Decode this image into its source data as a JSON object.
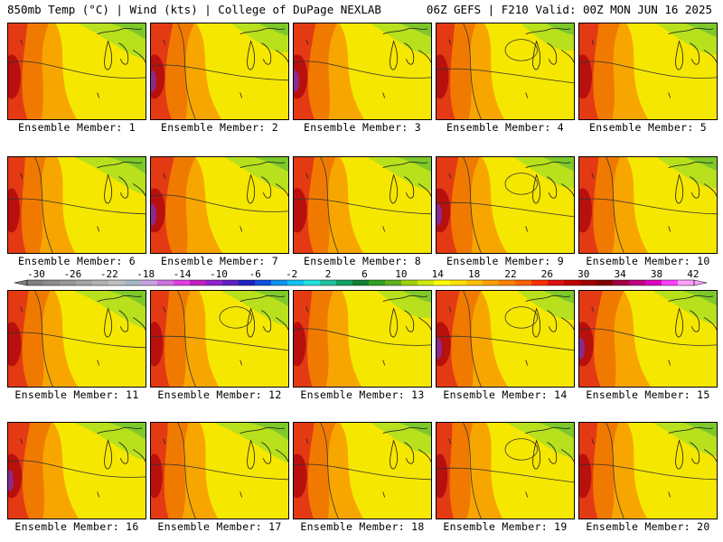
{
  "header": {
    "left_title": "850mb Temp (°C) | Wind (kts) | College of DuPage NEXLAB",
    "right_title": "06Z GEFS | F210 Valid: 00Z MON JUN 16 2025"
  },
  "label_prefix": "Ensemble Member: ",
  "members": [
    {
      "id": "1",
      "label": "Ensemble Member: 1"
    },
    {
      "id": "2",
      "label": "Ensemble Member: 2"
    },
    {
      "id": "3",
      "label": "Ensemble Member: 3"
    },
    {
      "id": "4",
      "label": "Ensemble Member: 4"
    },
    {
      "id": "5",
      "label": "Ensemble Member: 5"
    },
    {
      "id": "6",
      "label": "Ensemble Member: 6"
    },
    {
      "id": "7",
      "label": "Ensemble Member: 7"
    },
    {
      "id": "8",
      "label": "Ensemble Member: 8"
    },
    {
      "id": "9",
      "label": "Ensemble Member: 9"
    },
    {
      "id": "10",
      "label": "Ensemble Member: 10"
    },
    {
      "id": "11",
      "label": "Ensemble Member: 11"
    },
    {
      "id": "12",
      "label": "Ensemble Member: 12"
    },
    {
      "id": "13",
      "label": "Ensemble Member: 13"
    },
    {
      "id": "14",
      "label": "Ensemble Member: 14"
    },
    {
      "id": "15",
      "label": "Ensemble Member: 15"
    },
    {
      "id": "16",
      "label": "Ensemble Member: 16"
    },
    {
      "id": "17",
      "label": "Ensemble Member: 17"
    },
    {
      "id": "18",
      "label": "Ensemble Member: 18"
    },
    {
      "id": "19",
      "label": "Ensemble Member: 19"
    },
    {
      "id": "20",
      "label": "Ensemble Member: 20"
    }
  ],
  "colorbar": {
    "tick_labels": [
      "-30",
      "-26",
      "-22",
      "-18",
      "-14",
      "-10",
      "-6",
      "-2",
      "2",
      "6",
      "10",
      "14",
      "18",
      "22",
      "26",
      "30",
      "34",
      "38",
      "42"
    ],
    "colors": [
      "#808080",
      "#8c8c8c",
      "#989898",
      "#a5a5a5",
      "#b2b2b2",
      "#c0c0c0",
      "#a8b8c8",
      "#c8a0e0",
      "#d070e0",
      "#e040e0",
      "#c020c0",
      "#9020d0",
      "#6020c0",
      "#2020c0",
      "#1050e0",
      "#1090f0",
      "#10c0f0",
      "#20e0e0",
      "#20c0a0",
      "#10a060",
      "#108030",
      "#30a020",
      "#60b020",
      "#a0d010",
      "#d0e810",
      "#ffff00",
      "#ffe000",
      "#ffc000",
      "#ffa000",
      "#ff8000",
      "#ff6000",
      "#ff3000",
      "#e01010",
      "#c00000",
      "#a00000",
      "#800000",
      "#a00040",
      "#c00080",
      "#e000c0",
      "#ff40ff",
      "#ffa0ff"
    ]
  },
  "map_colors": {
    "green": "#7ec82a",
    "lightgreen": "#b8e01c",
    "yellow": "#f5ee00",
    "orange": "#f7a600",
    "deeporange": "#f07a00",
    "red": "#e43a14",
    "darkred": "#b8100c",
    "purple": "#8a2a8e"
  }
}
